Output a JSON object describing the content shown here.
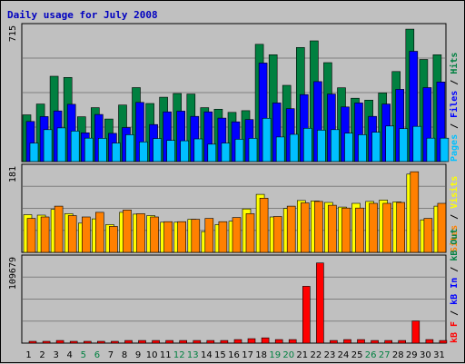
{
  "chart_data": {
    "type": "bar",
    "title": "Daily usage for July 2008",
    "categories": [
      "1",
      "2",
      "3",
      "4",
      "5",
      "6",
      "7",
      "8",
      "9",
      "10",
      "11",
      "12",
      "13",
      "14",
      "15",
      "16",
      "17",
      "18",
      "19",
      "20",
      "21",
      "22",
      "23",
      "24",
      "25",
      "26",
      "27",
      "28",
      "29",
      "30",
      "31"
    ],
    "weekend_days": [
      "5",
      "6",
      "12",
      "13",
      "19",
      "20",
      "26",
      "27"
    ],
    "panels": [
      {
        "name": "hits-files-pages",
        "ymax_label": "715",
        "ylim": [
          0,
          715
        ],
        "grid": true,
        "legend_parts": [
          "Pages",
          "Files",
          "Hits"
        ],
        "series": [
          {
            "name": "Hits",
            "color": "#008040",
            "values": [
              247,
              304,
              451,
              445,
              237,
              285,
              225,
              299,
              391,
              307,
              340,
              360,
              357,
              285,
              277,
              260,
              269,
              620,
              565,
              403,
              603,
              638,
              523,
              390,
              335,
              325,
              363,
              476,
              700,
              540,
              565
            ]
          },
          {
            "name": "Files",
            "color": "#0000ff",
            "values": [
              212,
              238,
              268,
              303,
              152,
              249,
              149,
              180,
              313,
              196,
              263,
              267,
              239,
              263,
              230,
              210,
              222,
              521,
              310,
              280,
              354,
              423,
              357,
              289,
              310,
              239,
              304,
              382,
              583,
              391,
              421
            ]
          },
          {
            "name": "Pages",
            "color": "#00c0ff",
            "values": [
              98,
              169,
              178,
              161,
              124,
              123,
              98,
              142,
              104,
              122,
              112,
              110,
              120,
              92,
              98,
              118,
              123,
              229,
              130,
              144,
              176,
              166,
              169,
              150,
              142,
              155,
              188,
              174,
              186,
              124,
              124
            ]
          }
        ]
      },
      {
        "name": "visits-sites",
        "ymax_label": "181",
        "ylim": [
          0,
          181
        ],
        "grid": true,
        "legend_parts": [
          "Sites",
          "Visits"
        ],
        "series": [
          {
            "name": "Visits",
            "color": "#ffff00",
            "values": [
              80,
              79,
              91,
              82,
              62,
              71,
              59,
              85,
              81,
              78,
              64,
              64,
              70,
              44,
              59,
              66,
              92,
              123,
              75,
              93,
              110,
              109,
              106,
              96,
              104,
              108,
              111,
              107,
              166,
              69,
              98
            ]
          },
          {
            "name": "Sites",
            "color": "#ff8000",
            "values": [
              72,
              75,
              98,
              78,
              75,
              85,
              55,
              90,
              82,
              75,
              65,
              65,
              70,
              72,
              65,
              74,
              82,
              115,
              76,
              98,
              105,
              108,
              100,
              94,
              94,
              104,
              104,
              106,
              171,
              72,
              104
            ]
          }
        ]
      },
      {
        "name": "kbytes",
        "ymax_label": "109679",
        "ylim": [
          0,
          109679
        ],
        "grid": true,
        "legend_parts": [
          "kB F",
          "kB In",
          "kB Out"
        ],
        "series": [
          {
            "name": "kB F",
            "color": "#ff0000",
            "values": [
              2300,
              2300,
              3400,
              2300,
              2300,
              2300,
              2300,
              3400,
              3400,
              3400,
              3400,
              3400,
              3400,
              3400,
              3400,
              4500,
              5700,
              6800,
              4500,
              4500,
              73000,
              103000,
              3400,
              4500,
              4500,
              3400,
              3400,
              3400,
              28500,
              4500,
              3400
            ]
          }
        ]
      }
    ]
  }
}
